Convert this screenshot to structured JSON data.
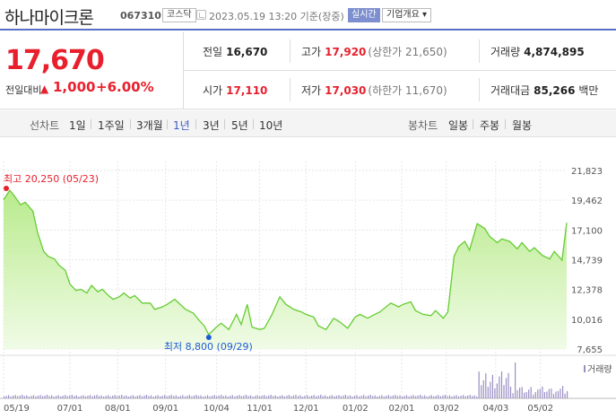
{
  "header": {
    "stock_name": "하나마이크론",
    "stock_code": "067310",
    "market": "코스닥",
    "datetime": "2023.05.19 13:20 기준(장중)",
    "realtime_label": "실시간",
    "company_info_label": "기업개요 ▾"
  },
  "quote": {
    "price": "17,670",
    "change_label": "전일대비",
    "change_icon": "▲",
    "change_amount": "1,000",
    "change_percent": "+6.00%",
    "row1": {
      "prev_label": "전일",
      "prev_value": "16,670",
      "high_label": "고가",
      "high_value": "17,920",
      "upper_limit": "(상한가 21,650)",
      "volume_label": "거래량",
      "volume_value": "4,874,895"
    },
    "row2": {
      "open_label": "시가",
      "open_value": "17,110",
      "low_label": "저가",
      "low_value": "17,030",
      "lower_limit": "(하한가 11,670)",
      "amount_label": "거래대금",
      "amount_value": "85,266",
      "amount_unit": "백만"
    }
  },
  "toolbar": {
    "line_label": "선차트",
    "periods": [
      "1일",
      "1주일",
      "3개월",
      "1년",
      "3년",
      "5년",
      "10년"
    ],
    "active_period": "1년",
    "candle_label": "봉차트",
    "candles": [
      "일봉",
      "주봉",
      "월봉"
    ]
  },
  "colors": {
    "up": "#e8202e",
    "down": "#1e5cd6",
    "line": "#66cc33",
    "fill_top": "#b9eb8d",
    "fill_bottom": "#f0fbe6",
    "volume": "#9b8ec4",
    "accent": "#5a6fc5"
  },
  "chart_data": {
    "type": "area",
    "y_ticks": [
      "21,823",
      "19,462",
      "17,100",
      "14,739",
      "12,378",
      "10,016",
      "7,655"
    ],
    "ylim": [
      7655,
      21823
    ],
    "x_ticks": [
      "05/19",
      "07/01",
      "08/01",
      "09/01",
      "10/04",
      "11/01",
      "12/01",
      "01/02",
      "02/01",
      "03/02",
      "04/03",
      "05/02"
    ],
    "high_annotation": "최고 20,250 (05/23)",
    "low_annotation": "최저 8,800 (09/29)",
    "high": {
      "date": "05/23",
      "value": 20250
    },
    "low": {
      "date": "09/29",
      "value": 8800
    },
    "volume_legend": "거래량",
    "x_range": [
      "2022-05-19",
      "2023-05-19"
    ],
    "series": [
      {
        "x": [
          "2022-05-19",
          "2022-05-23",
          "2022-05-26",
          "2022-05-30",
          "2022-06-02",
          "2022-06-07",
          "2022-06-10",
          "2022-06-14",
          "2022-06-17",
          "2022-06-21",
          "2022-06-24",
          "2022-06-28",
          "2022-07-01",
          "2022-07-05",
          "2022-07-08",
          "2022-07-12",
          "2022-07-15",
          "2022-07-19",
          "2022-07-22",
          "2022-07-26",
          "2022-07-29",
          "2022-08-02",
          "2022-08-05",
          "2022-08-09",
          "2022-08-12",
          "2022-08-17",
          "2022-08-22",
          "2022-08-25",
          "2022-08-30",
          "2022-09-02",
          "2022-09-07",
          "2022-09-14",
          "2022-09-19",
          "2022-09-23",
          "2022-09-26",
          "2022-09-29",
          "2022-10-04",
          "2022-10-07",
          "2022-10-12",
          "2022-10-17",
          "2022-10-20",
          "2022-10-24",
          "2022-10-27",
          "2022-11-01",
          "2022-11-04",
          "2022-11-09",
          "2022-11-14",
          "2022-11-18",
          "2022-11-23",
          "2022-11-28",
          "2022-12-01",
          "2022-12-06",
          "2022-12-09",
          "2022-12-14",
          "2022-12-19",
          "2022-12-23",
          "2022-12-28",
          "2023-01-02",
          "2023-01-05",
          "2023-01-10",
          "2023-01-13",
          "2023-01-18",
          "2023-01-25",
          "2023-01-30",
          "2023-02-02",
          "2023-02-07",
          "2023-02-10",
          "2023-02-15",
          "2023-02-20",
          "2023-02-23",
          "2023-02-28",
          "2023-03-03",
          "2023-03-07",
          "2023-03-10",
          "2023-03-14",
          "2023-03-17",
          "2023-03-22",
          "2023-03-27",
          "2023-03-30",
          "2023-04-04",
          "2023-04-07",
          "2023-04-12",
          "2023-04-17",
          "2023-04-20",
          "2023-04-25",
          "2023-04-28",
          "2023-05-03",
          "2023-05-08",
          "2023-05-11",
          "2023-05-16",
          "2023-05-19"
        ],
        "values": [
          19500,
          20250,
          19800,
          19100,
          19300,
          18600,
          16900,
          15400,
          15000,
          14800,
          14300,
          13900,
          12800,
          12300,
          12400,
          12100,
          12700,
          12200,
          12400,
          11900,
          11600,
          11800,
          12100,
          11700,
          11900,
          11300,
          11300,
          10800,
          11000,
          11200,
          11600,
          10800,
          10500,
          9900,
          9500,
          8800,
          9400,
          9700,
          9200,
          10400,
          9600,
          11200,
          9400,
          9200,
          9300,
          10400,
          11800,
          11200,
          10800,
          10600,
          10400,
          10200,
          9500,
          9200,
          10100,
          9800,
          9300,
          10200,
          10400,
          10100,
          10300,
          10600,
          11300,
          11000,
          11200,
          11400,
          10700,
          10400,
          10300,
          10700,
          10100,
          10600,
          15000,
          15800,
          16200,
          15500,
          17600,
          17200,
          16600,
          16100,
          16400,
          16200,
          15600,
          16100,
          15400,
          15700,
          15100,
          14800,
          15400,
          14700,
          17670
        ]
      }
    ]
  }
}
